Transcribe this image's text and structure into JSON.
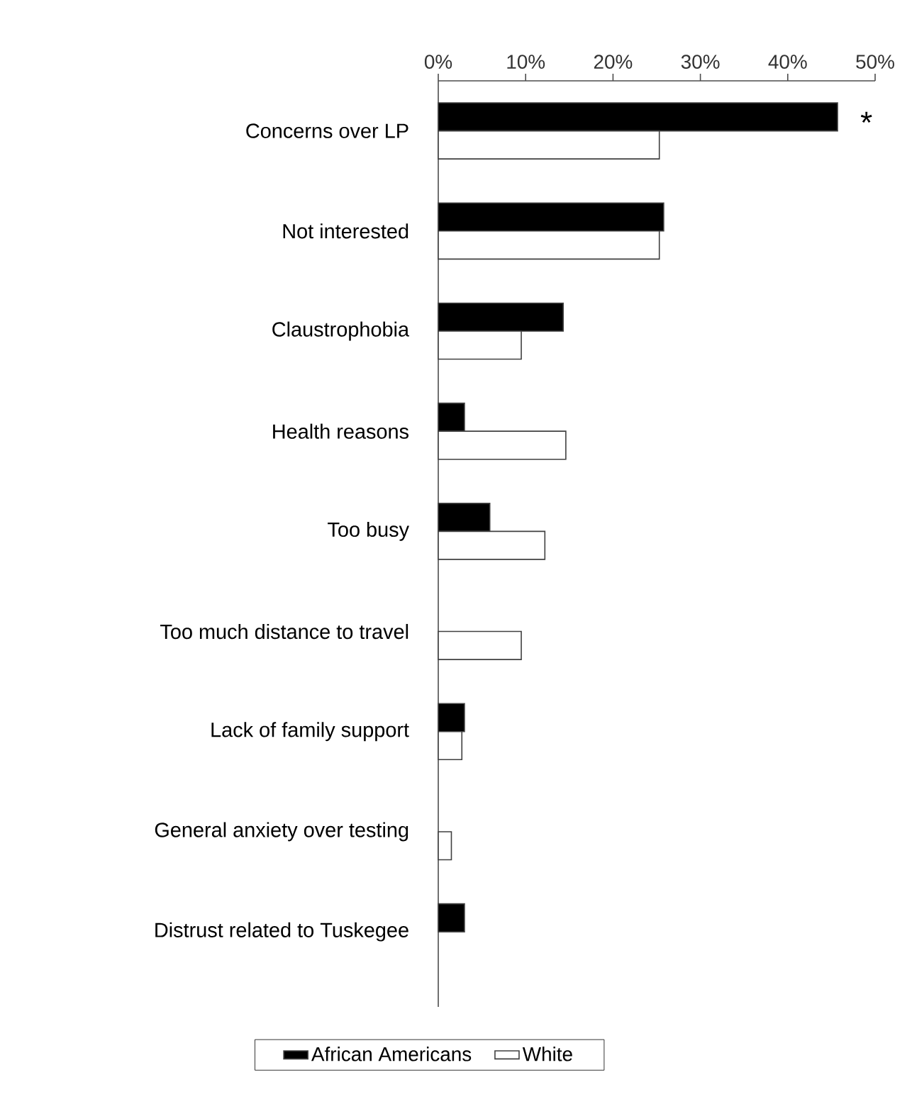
{
  "chart_data": {
    "type": "bar",
    "orientation": "horizontal",
    "categories": [
      "Concerns over LP",
      "Not interested",
      "Claustrophobia",
      "Health reasons",
      "Too busy",
      "Too much distance to travel",
      "Lack of family support",
      "General anxiety over testing",
      "Distrust related to Tuskegee"
    ],
    "series": [
      {
        "name": "African Americans",
        "color": "#000000",
        "values": [
          45.7,
          25.8,
          14.3,
          3.0,
          5.9,
          null,
          3.0,
          null,
          3.0
        ]
      },
      {
        "name": "White",
        "color": "#ffffff",
        "values": [
          25.3,
          25.3,
          9.5,
          14.6,
          12.2,
          9.5,
          2.7,
          1.5,
          null
        ]
      }
    ],
    "xlim": [
      0,
      50
    ],
    "xticks": [
      {
        "value": 0,
        "label": "0%"
      },
      {
        "value": 10,
        "label": "10%"
      },
      {
        "value": 20,
        "label": "20%"
      },
      {
        "value": 30,
        "label": "30%"
      },
      {
        "value": 40,
        "label": "40%"
      },
      {
        "value": 50,
        "label": "50%"
      }
    ],
    "annotations": [
      "*"
    ],
    "legend": "bottom",
    "grid": false
  }
}
